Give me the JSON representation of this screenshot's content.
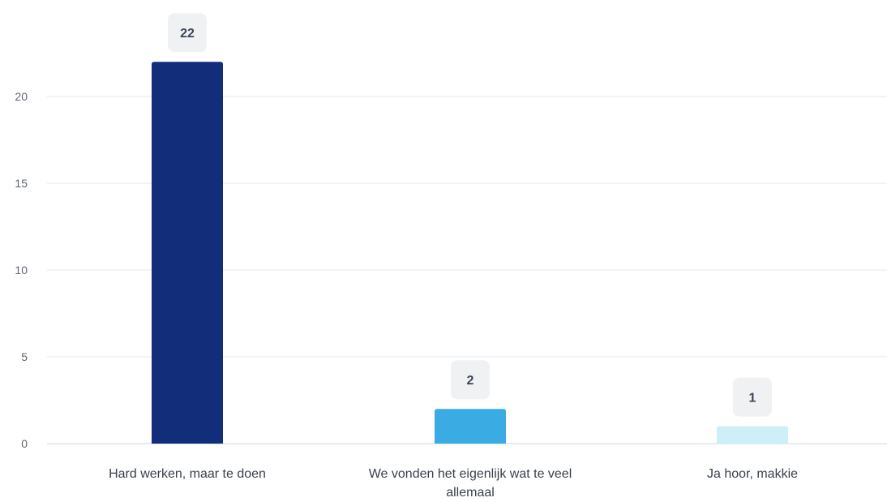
{
  "chart_data": {
    "type": "bar",
    "title": "",
    "xlabel": "",
    "ylabel": "",
    "categories": [
      "Hard werken, maar te doen",
      "We vonden het eigenlijk wat te veel allemaal",
      "Ja hoor, makkie"
    ],
    "category_lines": [
      [
        "Hard werken, maar te doen"
      ],
      [
        "We vonden het eigenlijk wat te veel",
        "allemaal"
      ],
      [
        "Ja hoor, makkie"
      ]
    ],
    "values": [
      22,
      2,
      1
    ],
    "data_labels": [
      "22",
      "2",
      "1"
    ],
    "colors": [
      "#122e7b",
      "#3aabe3",
      "#cdeff8"
    ],
    "ylim": [
      0,
      20
    ],
    "y_ticks": [
      0,
      5,
      10,
      15,
      20
    ],
    "y_tick_labels": [
      "0",
      "5",
      "10",
      "15",
      "20"
    ],
    "grid": true,
    "legend": "none"
  }
}
